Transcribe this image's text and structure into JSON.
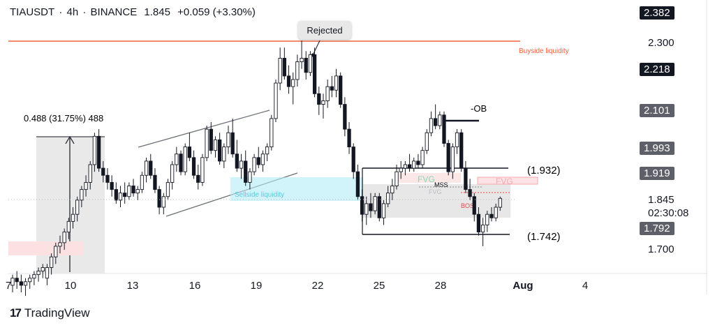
{
  "header": {
    "symbol": "TIAUSDT",
    "interval": "4h",
    "exchange": "BINANCE",
    "price": "1.845",
    "change": "+0.059 (+3.30%)",
    "separator": "·"
  },
  "branding": {
    "name": "TradingView",
    "mark": "17"
  },
  "price_labels": [
    {
      "id": "p2382",
      "text": "2.382",
      "style": "box"
    },
    {
      "id": "p2300",
      "text": "2.300",
      "style": "plain"
    },
    {
      "id": "p2218",
      "text": "2.218",
      "style": "box"
    },
    {
      "id": "p2101",
      "text": "2.101",
      "style": "grey"
    },
    {
      "id": "p1993",
      "text": "1.993",
      "style": "grey"
    },
    {
      "id": "p1919",
      "text": "1.919",
      "style": "grey"
    },
    {
      "id": "p1845",
      "text": "1.845",
      "style": "plain"
    },
    {
      "id": "pcountdown",
      "text": "02:30:08",
      "style": "plain"
    },
    {
      "id": "p1792",
      "text": "1.792",
      "style": "grey"
    },
    {
      "id": "p1700",
      "text": "1.700",
      "style": "plain"
    }
  ],
  "x_axis": {
    "labels": [
      "7",
      "10",
      "13",
      "16",
      "19",
      "22",
      "25",
      "28",
      "Aug",
      "4"
    ]
  },
  "annotations": {
    "rejected": "Rejected",
    "buyside": "Buyside liquidity",
    "sellside": "Sellside liquidity",
    "measure": "0.488 (31.75%) 488",
    "ob": "-OB",
    "level_1932": "(1.932)",
    "level_1742": "(1.742)",
    "fvg1": "FVG",
    "fvg2": "FVG",
    "fvg3": "FVG",
    "mss": "MSS",
    "bos": "BOS"
  },
  "colors": {
    "up": "#ffffff",
    "down": "#131722",
    "buyside": "#f0623d",
    "sellside": "#b3ecf7",
    "fvg_red": "#f7a9b0",
    "fvg_green": "#8cd6b4",
    "bos": "#e8454a"
  },
  "chart_data": {
    "type": "candlestick",
    "symbol": "TIAUSDT",
    "interval": "4h",
    "ylim": [
      1.62,
      2.42
    ],
    "y_ticks": [
      2.382,
      2.3,
      2.218,
      2.101,
      1.993,
      1.919,
      1.845,
      1.792,
      1.7
    ],
    "x_ticks": [
      "7",
      "10",
      "13",
      "16",
      "19",
      "22",
      "25",
      "28",
      "Aug",
      "4"
    ],
    "levels": {
      "buyside_liquidity": 2.3,
      "ob_high": 1.932,
      "ob_low": 1.742
    },
    "ohlc": [
      [
        1.6,
        1.63,
        1.58,
        1.62
      ],
      [
        1.62,
        1.64,
        1.59,
        1.61
      ],
      [
        1.61,
        1.63,
        1.58,
        1.6
      ],
      [
        1.6,
        1.62,
        1.57,
        1.61
      ],
      [
        1.61,
        1.63,
        1.59,
        1.62
      ],
      [
        1.62,
        1.64,
        1.6,
        1.63
      ],
      [
        1.63,
        1.65,
        1.61,
        1.64
      ],
      [
        1.64,
        1.66,
        1.62,
        1.65
      ],
      [
        1.62,
        1.66,
        1.6,
        1.65
      ],
      [
        1.65,
        1.69,
        1.63,
        1.68
      ],
      [
        1.68,
        1.72,
        1.66,
        1.71
      ],
      [
        1.71,
        1.74,
        1.69,
        1.72
      ],
      [
        1.72,
        1.76,
        1.7,
        1.75
      ],
      [
        1.75,
        1.79,
        1.73,
        1.78
      ],
      [
        1.78,
        1.82,
        1.76,
        1.8
      ],
      [
        1.8,
        1.85,
        1.78,
        1.84
      ],
      [
        1.84,
        1.88,
        1.82,
        1.87
      ],
      [
        1.87,
        1.91,
        1.85,
        1.89
      ],
      [
        1.89,
        1.95,
        1.87,
        1.94
      ],
      [
        1.94,
        2.03,
        1.92,
        2.02
      ],
      [
        2.02,
        2.04,
        1.92,
        1.93
      ],
      [
        1.93,
        1.95,
        1.89,
        1.91
      ],
      [
        1.91,
        1.93,
        1.87,
        1.89
      ],
      [
        1.89,
        1.91,
        1.85,
        1.87
      ],
      [
        1.87,
        1.89,
        1.83,
        1.84
      ],
      [
        1.84,
        1.88,
        1.82,
        1.86
      ],
      [
        1.86,
        1.89,
        1.83,
        1.85
      ],
      [
        1.85,
        1.89,
        1.84,
        1.88
      ],
      [
        1.88,
        1.9,
        1.85,
        1.86
      ],
      [
        1.86,
        1.88,
        1.84,
        1.87
      ],
      [
        1.87,
        1.92,
        1.86,
        1.91
      ],
      [
        1.91,
        1.96,
        1.89,
        1.95
      ],
      [
        1.95,
        1.97,
        1.9,
        1.91
      ],
      [
        1.91,
        1.93,
        1.86,
        1.87
      ],
      [
        1.87,
        1.88,
        1.8,
        1.82
      ],
      [
        1.82,
        1.86,
        1.8,
        1.85
      ],
      [
        1.85,
        1.9,
        1.84,
        1.89
      ],
      [
        1.89,
        1.95,
        1.87,
        1.94
      ],
      [
        1.94,
        1.99,
        1.92,
        1.97
      ],
      [
        1.97,
        1.98,
        1.91,
        1.92
      ],
      [
        1.92,
        2.0,
        1.91,
        1.99
      ],
      [
        1.99,
        2.03,
        1.95,
        1.96
      ],
      [
        1.96,
        1.98,
        1.9,
        1.91
      ],
      [
        1.91,
        1.94,
        1.87,
        1.89
      ],
      [
        1.89,
        1.97,
        1.88,
        1.96
      ],
      [
        1.96,
        2.05,
        1.95,
        2.04
      ],
      [
        2.04,
        2.06,
        1.97,
        1.98
      ],
      [
        1.98,
        2.02,
        1.96,
        2.01
      ],
      [
        2.01,
        2.03,
        1.94,
        1.95
      ],
      [
        1.95,
        2.0,
        1.93,
        1.99
      ],
      [
        1.99,
        2.05,
        1.97,
        2.03
      ],
      [
        2.03,
        2.07,
        1.96,
        1.97
      ],
      [
        1.97,
        2.01,
        1.92,
        1.93
      ],
      [
        1.93,
        1.97,
        1.9,
        1.95
      ],
      [
        1.95,
        1.98,
        1.88,
        1.89
      ],
      [
        1.89,
        1.93,
        1.87,
        1.92
      ],
      [
        1.92,
        1.97,
        1.91,
        1.96
      ],
      [
        1.96,
        1.99,
        1.93,
        1.94
      ],
      [
        1.94,
        1.98,
        1.92,
        1.97
      ],
      [
        1.97,
        2.0,
        1.95,
        1.99
      ],
      [
        1.99,
        2.08,
        1.98,
        2.07
      ],
      [
        2.07,
        2.18,
        2.06,
        2.17
      ],
      [
        2.17,
        2.27,
        2.15,
        2.24
      ],
      [
        2.24,
        2.27,
        2.18,
        2.19
      ],
      [
        2.19,
        2.22,
        2.14,
        2.16
      ],
      [
        2.16,
        2.2,
        2.11,
        2.18
      ],
      [
        2.18,
        2.25,
        2.16,
        2.23
      ],
      [
        2.23,
        2.29,
        2.21,
        2.24
      ],
      [
        2.24,
        2.26,
        2.18,
        2.2
      ],
      [
        2.2,
        2.26,
        2.19,
        2.25
      ],
      [
        2.25,
        2.27,
        2.13,
        2.14
      ],
      [
        2.14,
        2.16,
        2.08,
        2.11
      ],
      [
        2.11,
        2.14,
        2.07,
        2.12
      ],
      [
        2.12,
        2.18,
        2.1,
        2.16
      ],
      [
        2.16,
        2.19,
        2.13,
        2.15
      ],
      [
        2.15,
        2.21,
        2.13,
        2.19
      ],
      [
        2.19,
        2.2,
        2.1,
        2.11
      ],
      [
        2.11,
        2.13,
        2.02,
        2.04
      ],
      [
        2.04,
        2.06,
        1.97,
        1.99
      ],
      [
        1.99,
        2.0,
        1.9,
        1.92
      ],
      [
        1.92,
        1.94,
        1.84,
        1.85
      ],
      [
        1.85,
        1.87,
        1.78,
        1.8
      ],
      [
        1.8,
        1.85,
        1.77,
        1.83
      ],
      [
        1.83,
        1.86,
        1.79,
        1.81
      ],
      [
        1.81,
        1.86,
        1.8,
        1.85
      ],
      [
        1.85,
        1.86,
        1.78,
        1.79
      ],
      [
        1.79,
        1.84,
        1.77,
        1.83
      ],
      [
        1.83,
        1.88,
        1.82,
        1.86
      ],
      [
        1.86,
        1.9,
        1.84,
        1.88
      ],
      [
        1.88,
        1.94,
        1.87,
        1.92
      ],
      [
        1.92,
        1.95,
        1.9,
        1.93
      ],
      [
        1.93,
        1.95,
        1.91,
        1.94
      ],
      [
        1.94,
        1.97,
        1.92,
        1.93
      ],
      [
        1.93,
        1.96,
        1.92,
        1.95
      ],
      [
        1.95,
        1.97,
        1.93,
        1.94
      ],
      [
        1.94,
        1.99,
        1.93,
        1.98
      ],
      [
        1.98,
        2.04,
        1.97,
        2.03
      ],
      [
        2.03,
        2.09,
        2.02,
        2.07
      ],
      [
        2.07,
        2.11,
        2.04,
        2.05
      ],
      [
        2.05,
        2.09,
        2.04,
        2.08
      ],
      [
        2.08,
        2.09,
        1.99,
        2.0
      ],
      [
        2.0,
        2.01,
        1.91,
        1.92
      ],
      [
        1.92,
        2.0,
        1.9,
        1.99
      ],
      [
        1.99,
        2.04,
        1.97,
        2.03
      ],
      [
        2.03,
        2.04,
        1.92,
        1.93
      ],
      [
        1.93,
        1.95,
        1.86,
        1.87
      ],
      [
        1.87,
        1.9,
        1.84,
        1.85
      ],
      [
        1.85,
        1.86,
        1.78,
        1.8
      ],
      [
        1.8,
        1.82,
        1.74,
        1.75
      ],
      [
        1.75,
        1.79,
        1.71,
        1.77
      ],
      [
        1.77,
        1.81,
        1.75,
        1.8
      ],
      [
        1.8,
        1.82,
        1.78,
        1.79
      ],
      [
        1.79,
        1.83,
        1.78,
        1.82
      ],
      [
        1.82,
        1.85,
        1.81,
        1.845
      ]
    ]
  }
}
